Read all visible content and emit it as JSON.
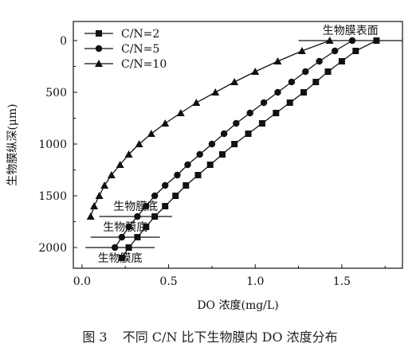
{
  "chart_data": {
    "type": "line",
    "xlabel": "DO 浓度(mg/L)",
    "ylabel": "生物膜纵深(μm)",
    "xlim": [
      -0.05,
      1.85
    ],
    "ylim": [
      0,
      2200
    ],
    "y_inverted": true,
    "xticks": [
      0.0,
      0.5,
      1.0,
      1.5
    ],
    "xtick_labels": [
      "0.0",
      "0.5",
      "1.0",
      "1.5"
    ],
    "yticks": [
      0,
      500,
      1000,
      1500,
      2000
    ],
    "ytick_labels": [
      "0",
      "500",
      "1000",
      "1500",
      "2000"
    ],
    "legend_position": "top-left",
    "grid": false,
    "series": [
      {
        "name": "C/N=2",
        "marker": "square",
        "x": [
          1.7,
          1.58,
          1.5,
          1.42,
          1.35,
          1.28,
          1.2,
          1.12,
          1.04,
          0.96,
          0.88,
          0.81,
          0.74,
          0.67,
          0.6,
          0.54,
          0.48,
          0.42,
          0.37,
          0.32,
          0.27,
          0.23,
          0.19,
          0.15,
          0.12,
          0.09,
          0.06,
          0.04,
          0.02,
          0.01,
          0.01
        ],
        "y": [
          0,
          100,
          200,
          300,
          400,
          500,
          600,
          700,
          800,
          900,
          1000,
          1100,
          1200,
          1300,
          1400,
          1500,
          1600,
          1700,
          1800,
          1900,
          2000,
          2100,
          1600,
          1700,
          1800,
          1900,
          2000,
          1700,
          1800,
          1900,
          2000
        ]
      },
      {
        "name": "C/N=5",
        "marker": "circle",
        "x": [
          1.56,
          1.46,
          1.37,
          1.29,
          1.21,
          1.13,
          1.05,
          0.97,
          0.89,
          0.82,
          0.75,
          0.68,
          0.61,
          0.55,
          0.48,
          0.42,
          0.37,
          0.32,
          0.27,
          0.23,
          0.19,
          0.16,
          0.13,
          0.1,
          0.08,
          0.06,
          0.04,
          0.03,
          0.02,
          0.01,
          0.01
        ],
        "y": [
          0,
          100,
          200,
          300,
          400,
          500,
          600,
          700,
          800,
          900,
          1000,
          1100,
          1200,
          1300,
          1400,
          1500,
          1600,
          1700,
          1800,
          1900,
          2000,
          1600,
          1650,
          1700,
          1750,
          1800,
          1850,
          1900,
          1950,
          2000,
          2050
        ]
      },
      {
        "name": "C/N=10",
        "marker": "triangle",
        "x": [
          1.43,
          1.27,
          1.13,
          1.0,
          0.88,
          0.77,
          0.66,
          0.57,
          0.48,
          0.4,
          0.33,
          0.27,
          0.22,
          0.17,
          0.13,
          0.1,
          0.07,
          0.05
        ],
        "y": [
          0,
          100,
          200,
          300,
          400,
          500,
          600,
          700,
          800,
          900,
          1000,
          1100,
          1200,
          1300,
          1400,
          1500,
          1600,
          1700
        ]
      }
    ],
    "annotations": [
      {
        "text": "生物膜表面",
        "line_x": [
          1.25,
          1.85
        ],
        "line_y": 0
      },
      {
        "text": "生物膜底",
        "line_x": [
          0.1,
          0.52
        ],
        "line_y": 1700
      },
      {
        "text": "生物膜底",
        "line_x": [
          0.05,
          0.45
        ],
        "line_y": 1900
      },
      {
        "text": "生物膜底",
        "line_x": [
          0.02,
          0.42
        ],
        "line_y": 2000
      }
    ]
  },
  "caption": {
    "figure_number": "图 3",
    "text": "不同 C/N 比下生物膜内 DO 浓度分布"
  },
  "colors": {
    "ink": "#111111",
    "background": "#ffffff"
  }
}
